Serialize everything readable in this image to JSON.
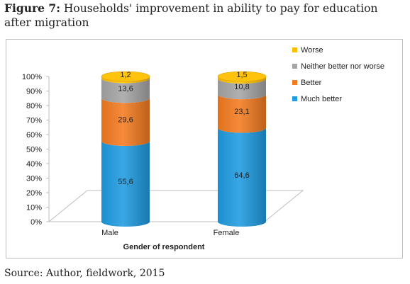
{
  "caption": {
    "label": "Figure 7:",
    "text": "Households' improvement in ability to pay for education after migration"
  },
  "source": "Source: Author, fieldwork, 2015",
  "chart_data": {
    "type": "bar",
    "stacked": true,
    "style": "3d-cylinder",
    "categories": [
      "Male",
      "Female"
    ],
    "xlabel": "Gender of respondent",
    "ylabel": "",
    "ylim": [
      0,
      100
    ],
    "yticks": [
      "0%",
      "10%",
      "20%",
      "30%",
      "40%",
      "50%",
      "60%",
      "70%",
      "80%",
      "90%",
      "100%"
    ],
    "series": [
      {
        "name": "Much better",
        "values": [
          55.6,
          64.6
        ],
        "labels": [
          "55,6",
          "64,6"
        ],
        "color": "#1f9be0"
      },
      {
        "name": "Better",
        "values": [
          29.6,
          23.1
        ],
        "labels": [
          "29,6",
          "23,1"
        ],
        "color": "#f47b20"
      },
      {
        "name": "Neither better nor worse",
        "values": [
          13.6,
          10.8
        ],
        "labels": [
          "13,6",
          "10,8"
        ],
        "color": "#a5a5a5"
      },
      {
        "name": "Worse",
        "values": [
          1.2,
          1.5
        ],
        "labels": [
          "1,2",
          "1,5"
        ],
        "color": "#ffc000"
      }
    ],
    "legend_position": "right",
    "legend_order": [
      "Worse",
      "Neither better nor worse",
      "Better",
      "Much better"
    ],
    "grid": false
  }
}
